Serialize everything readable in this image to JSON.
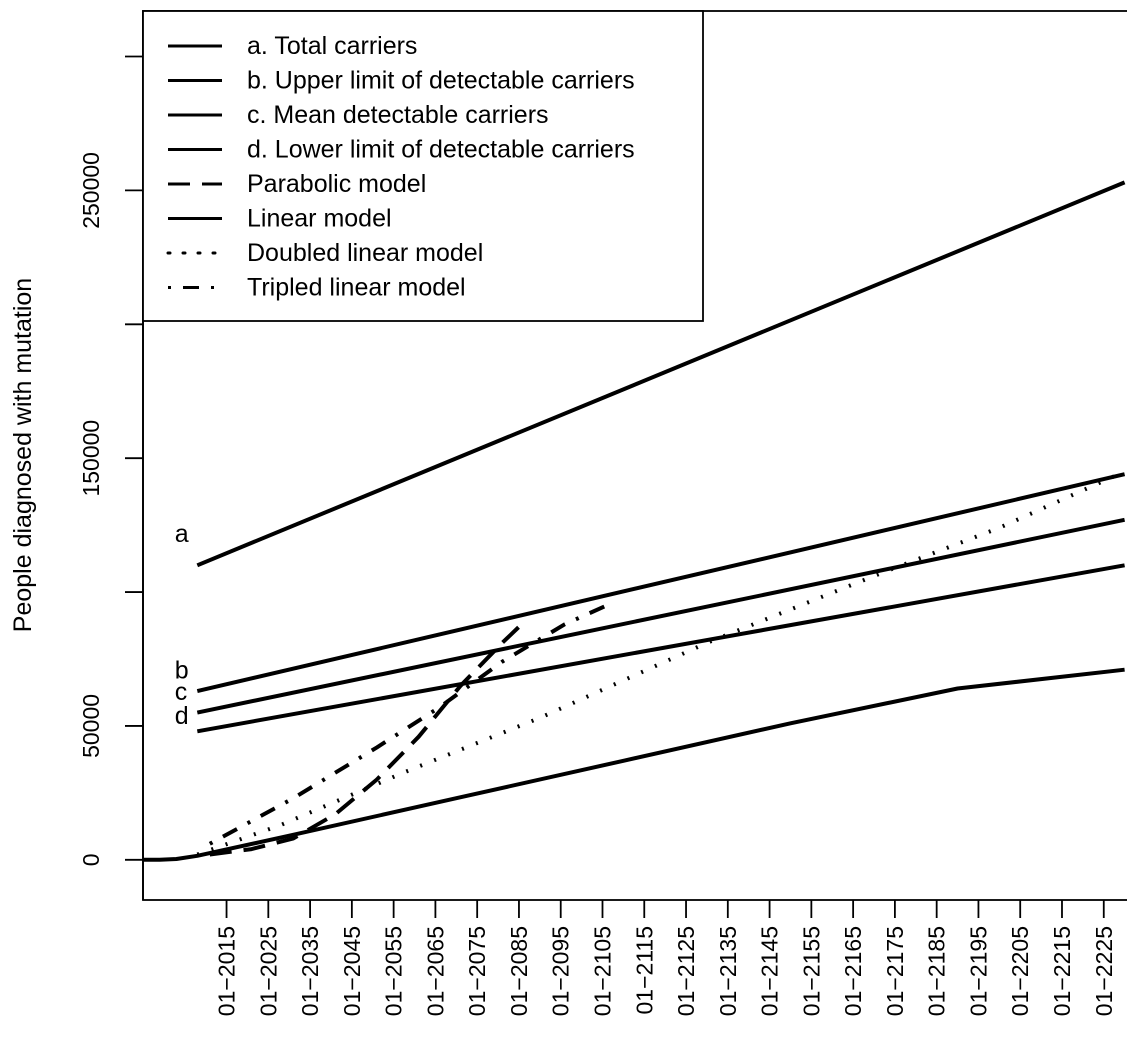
{
  "chart_data": {
    "type": "line",
    "title": "",
    "xlabel": "",
    "ylabel": "People diagnosed with mutation",
    "x_ticks": [
      "01−2015",
      "01−2025",
      "01−2035",
      "01−2045",
      "01−2055",
      "01−2065",
      "01−2075",
      "01−2085",
      "01−2095",
      "01−2105",
      "01−2115",
      "01−2125",
      "01−2135",
      "01−2145",
      "01−2155",
      "01−2165",
      "01−2175",
      "01−2185",
      "01−2195",
      "01−2205",
      "01−2215",
      "01−2225"
    ],
    "y_ticks": [
      0,
      50000,
      100000,
      150000,
      200000,
      250000,
      300000
    ],
    "y_tick_labels": [
      "0",
      "50000",
      "",
      "150000",
      "",
      "250000",
      ""
    ],
    "xlim": [
      1995,
      2232
    ],
    "ylim": [
      -15000,
      317000
    ],
    "grid": false,
    "legend_position": "top-left",
    "series": [
      {
        "name": "a. Total carriers",
        "style": "solid",
        "x": [
          2008,
          2230
        ],
        "y": [
          110000,
          253000
        ]
      },
      {
        "name": "b. Upper limit of detectable carriers",
        "style": "solid",
        "x": [
          2008,
          2230
        ],
        "y": [
          63000,
          144000
        ]
      },
      {
        "name": "c. Mean detectable carriers",
        "style": "solid",
        "x": [
          2008,
          2230
        ],
        "y": [
          55000,
          127000
        ]
      },
      {
        "name": "d. Lower limit of detectable carriers",
        "style": "solid",
        "x": [
          2008,
          2230
        ],
        "y": [
          48000,
          110000
        ]
      },
      {
        "name": "Parabolic model",
        "style": "dashed",
        "x": [
          2011,
          2021,
          2031,
          2041,
          2051,
          2061,
          2071,
          2081,
          2085
        ],
        "y": [
          2000,
          4000,
          8000,
          17000,
          30000,
          46000,
          65000,
          81000,
          87000
        ]
      },
      {
        "name": "Linear model",
        "style": "solid",
        "x": [
          1995,
          1999,
          2003,
          2008,
          2030,
          2070,
          2110,
          2150,
          2190,
          2230
        ],
        "y": [
          0,
          0,
          300,
          1500,
          9000,
          23000,
          37000,
          51000,
          64000,
          71000
        ]
      },
      {
        "name": "Doubled linear model",
        "style": "dotted",
        "x": [
          2008,
          2028,
          2058,
          2090,
          2130,
          2170,
          2200,
          2230
        ],
        "y": [
          2000,
          13000,
          33000,
          53000,
          81000,
          106000,
          124000,
          145000
        ]
      },
      {
        "name": "Tripled linear model",
        "style": "dashdot",
        "x": [
          2011,
          2031,
          2051,
          2066,
          2081,
          2096,
          2106
        ],
        "y": [
          6000,
          23000,
          42000,
          57000,
          74000,
          88000,
          95000
        ]
      }
    ],
    "annotations": [
      {
        "text": "a",
        "x": 2005,
        "y": 122000
      },
      {
        "text": "b",
        "x": 2005,
        "y": 71000
      },
      {
        "text": "c",
        "x": 2005,
        "y": 63000
      },
      {
        "text": "d",
        "x": 2005,
        "y": 54000
      }
    ]
  }
}
